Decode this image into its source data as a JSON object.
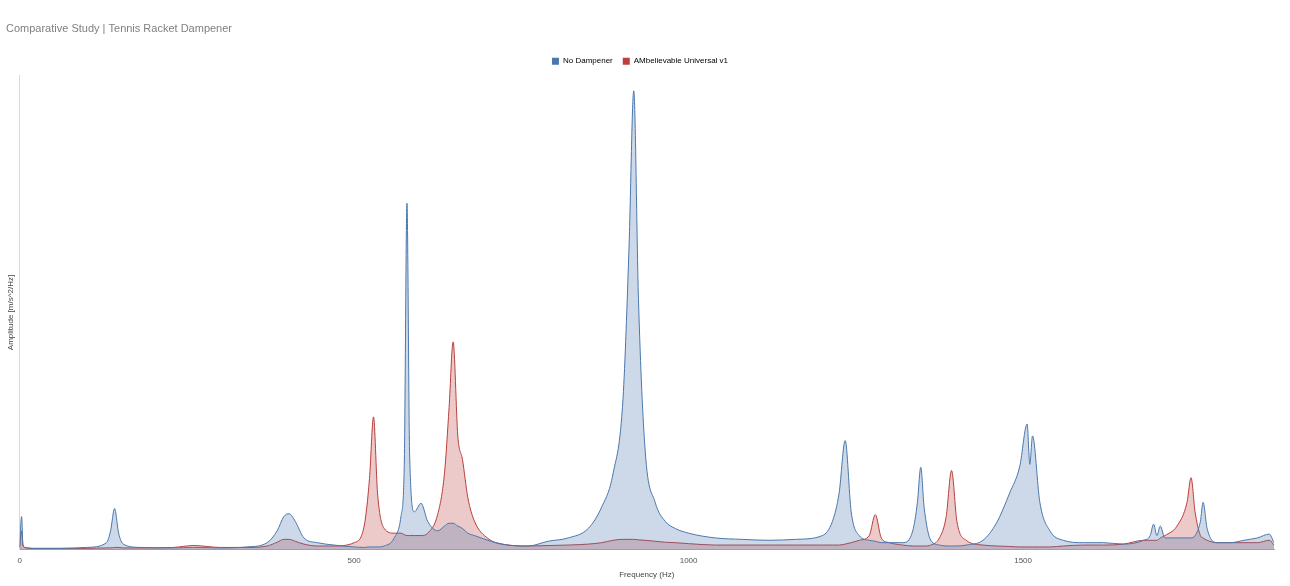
{
  "chart_data": {
    "type": "area",
    "title": "Comparative Study | Tennis Racket Dampener",
    "x_label": "Frequency (Hz)",
    "y_label": "Amplitude [m/s^2/Hz]",
    "x": [
      0,
      3,
      5,
      8,
      20,
      60,
      100,
      130,
      136,
      142,
      148,
      155,
      180,
      230,
      260,
      300,
      340,
      370,
      385,
      395,
      403,
      412,
      425,
      445,
      470,
      500,
      515,
      523,
      529,
      535,
      545,
      560,
      570,
      575,
      579,
      583,
      590,
      600,
      610,
      625,
      635,
      642,
      648,
      655,
      662,
      670,
      680,
      700,
      730,
      760,
      790,
      820,
      850,
      870,
      887,
      902,
      911,
      918,
      925,
      935,
      950,
      965,
      980,
      1000,
      1040,
      1080,
      1120,
      1160,
      1200,
      1215,
      1225,
      1234,
      1243,
      1255,
      1270,
      1279,
      1288,
      1300,
      1320,
      1335,
      1342,
      1347,
      1352,
      1362,
      1375,
      1385,
      1393,
      1401,
      1415,
      1440,
      1460,
      1480,
      1495,
      1506,
      1510,
      1514,
      1525,
      1540,
      1560,
      1590,
      1620,
      1650,
      1680,
      1690,
      1695,
      1700,
      1705,
      1712,
      1730,
      1745,
      1751,
      1757,
      1765,
      1769,
      1775,
      1790,
      1810,
      1830,
      1850,
      1868,
      1875
    ],
    "series": [
      {
        "name": "No Dampener",
        "color": "#4a78ad",
        "values": [
          0.5,
          7,
          1,
          0.5,
          0.3,
          0.3,
          0.5,
          1.5,
          4,
          8.7,
          3.5,
          1.2,
          0.5,
          0.4,
          0.5,
          0.4,
          0.6,
          1.5,
          4,
          7,
          7.6,
          6,
          2.5,
          1.5,
          1,
          0.6,
          0.5,
          0.6,
          0.6,
          0.6,
          0.8,
          2.5,
          7,
          18,
          73,
          20,
          8,
          9.8,
          6,
          4,
          5,
          5.6,
          5.6,
          5,
          4.5,
          3.5,
          3,
          2,
          1,
          0.8,
          1.8,
          2.5,
          4.5,
          9,
          16,
          32,
          64,
          96.7,
          53,
          21,
          10,
          6,
          4.5,
          3.5,
          2.5,
          2.2,
          2,
          2.2,
          3,
          6,
          12,
          23,
          8,
          3,
          2,
          1.8,
          1.5,
          1.5,
          1.5,
          4,
          10,
          17.4,
          9,
          2,
          1,
          0.8,
          0.8,
          0.8,
          1,
          2,
          5.6,
          12,
          17.6,
          26.5,
          18,
          24,
          10,
          4,
          2,
          1.5,
          1.5,
          1.2,
          2,
          3,
          5.4,
          3,
          5,
          2.5,
          2.5,
          2.5,
          2.5,
          3,
          6,
          10,
          4.5,
          1.5,
          1.5,
          2,
          2.5,
          3.3,
          1.5
        ]
      },
      {
        "name": "AMbelievable Universal v1",
        "color": "#b9403d",
        "values": [
          0.5,
          4,
          1,
          0.5,
          0.3,
          0.3,
          0.3,
          0.4,
          0.4,
          0.5,
          0.5,
          0.4,
          0.4,
          0.5,
          0.9,
          0.5,
          0.5,
          0.8,
          1.6,
          2.2,
          2.2,
          1.8,
          1.2,
          0.8,
          0.8,
          1.5,
          5,
          15,
          28,
          12,
          4.5,
          3.5,
          3.5,
          3.2,
          3,
          3,
          3,
          3,
          3.5,
          7.5,
          16,
          30,
          43.8,
          24,
          19,
          11,
          6,
          2.4,
          1,
          0.8,
          0.9,
          1,
          1.2,
          1.5,
          2,
          2.2,
          2.2,
          2.2,
          2.1,
          2,
          1.8,
          1.6,
          1.5,
          1.3,
          1,
          1,
          1,
          1,
          1,
          1,
          1,
          1.2,
          1.5,
          2,
          3,
          7.4,
          2.5,
          1.5,
          1,
          0.8,
          0.8,
          0.8,
          0.8,
          1,
          2.5,
          7,
          16.7,
          6,
          2,
          1,
          0.8,
          0.7,
          0.6,
          0.6,
          0.6,
          0.6,
          0.6,
          0.6,
          0.8,
          1,
          1,
          1.2,
          2,
          2,
          2,
          2,
          2.5,
          3,
          5,
          10,
          15.2,
          8,
          3,
          2.5,
          2,
          1.5,
          1.5,
          1.5,
          1.5,
          2,
          1
        ]
      }
    ],
    "xlim": [
      0,
      1875
    ],
    "xticks": [
      0,
      500,
      1000,
      1500
    ],
    "ylim": [
      0,
      100
    ],
    "tick_labels": "x",
    "grid": false,
    "legend": "top"
  }
}
